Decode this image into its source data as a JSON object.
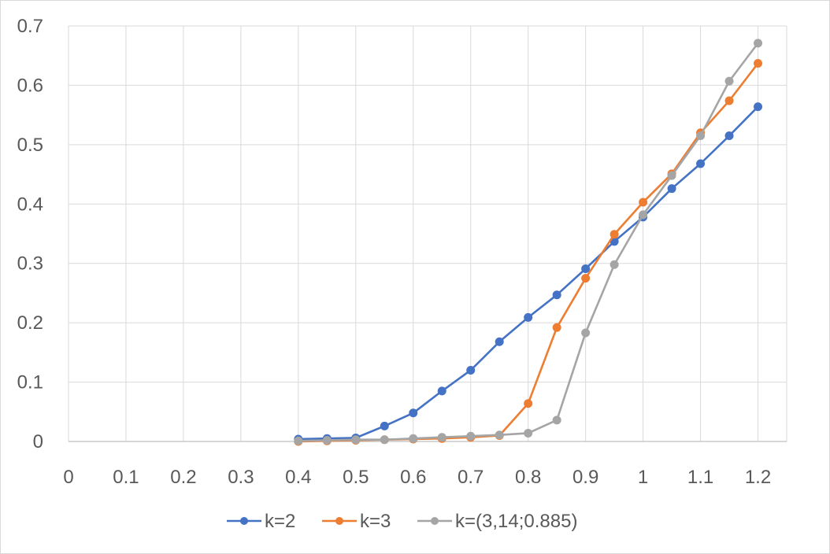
{
  "chart_data": {
    "type": "scatter",
    "title": "",
    "xlabel": "",
    "ylabel": "",
    "xlim": [
      0,
      1.25
    ],
    "ylim": [
      0,
      0.7
    ],
    "x_ticks": [
      0,
      0.1,
      0.2,
      0.3,
      0.4,
      0.5,
      0.6,
      0.7,
      0.8,
      0.9,
      1,
      1.1,
      1.2
    ],
    "x_tick_labels": [
      "0",
      "0.1",
      "0.2",
      "0.3",
      "0.4",
      "0.5",
      "0.6",
      "0.7",
      "0.8",
      "0.9",
      "1",
      "1.1",
      "1.2"
    ],
    "y_ticks": [
      0,
      0.1,
      0.2,
      0.3,
      0.4,
      0.5,
      0.6,
      0.7
    ],
    "y_tick_labels": [
      "0",
      "0.1",
      "0.2",
      "0.3",
      "0.4",
      "0.5",
      "0.6",
      "0.7"
    ],
    "grid": true,
    "legend_position": "bottom",
    "lines_with_markers": true,
    "x": [
      0.4,
      0.45,
      0.5,
      0.55,
      0.6,
      0.65,
      0.7,
      0.75,
      0.8,
      0.85,
      0.9,
      0.95,
      1.0,
      1.05,
      1.1,
      1.15,
      1.2
    ],
    "series": [
      {
        "name": "k=2",
        "color": "#4472c4",
        "values": [
          0.004,
          0.005,
          0.006,
          0.026,
          0.048,
          0.085,
          0.12,
          0.168,
          0.209,
          0.247,
          0.291,
          0.337,
          0.378,
          0.426,
          0.468,
          0.515,
          0.564
        ]
      },
      {
        "name": "k=3",
        "color": "#ed7d31",
        "values": [
          0.0,
          0.001,
          0.002,
          0.003,
          0.004,
          0.005,
          0.007,
          0.01,
          0.064,
          0.192,
          0.275,
          0.349,
          0.403,
          0.451,
          0.52,
          0.574,
          0.637
        ]
      },
      {
        "name": "k=(3,14;0.885)",
        "color": "#a5a5a5",
        "values": [
          0.001,
          0.002,
          0.003,
          0.003,
          0.005,
          0.007,
          0.009,
          0.011,
          0.014,
          0.036,
          0.183,
          0.298,
          0.382,
          0.448,
          0.515,
          0.607,
          0.671
        ]
      }
    ]
  }
}
